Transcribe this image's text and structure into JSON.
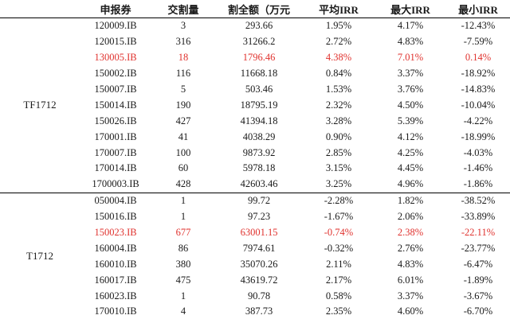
{
  "headers": [
    "",
    "申报券",
    "交割量",
    "割全额（万元",
    "平均IRR",
    "最大IRR",
    "最小IRR"
  ],
  "colors": {
    "highlight": "#e0322e",
    "text": "#1a1a1a"
  },
  "groups": [
    {
      "name": "TF1712",
      "rows": [
        {
          "code": "120009.IB",
          "qty": "3",
          "amount": "293.66",
          "avg": "1.95%",
          "max": "4.17%",
          "min": "-12.43%",
          "highlight": false
        },
        {
          "code": "120015.IB",
          "qty": "316",
          "amount": "31266.2",
          "avg": "2.72%",
          "max": "4.83%",
          "min": "-7.59%",
          "highlight": false
        },
        {
          "code": "130005.IB",
          "qty": "18",
          "amount": "1796.46",
          "avg": "4.38%",
          "max": "7.01%",
          "min": "0.14%",
          "highlight": true
        },
        {
          "code": "150002.IB",
          "qty": "116",
          "amount": "11668.18",
          "avg": "0.84%",
          "max": "3.37%",
          "min": "-18.92%",
          "highlight": false
        },
        {
          "code": "150007.IB",
          "qty": "5",
          "amount": "503.46",
          "avg": "1.53%",
          "max": "3.76%",
          "min": "-14.83%",
          "highlight": false
        },
        {
          "code": "150014.IB",
          "qty": "190",
          "amount": "18795.19",
          "avg": "2.32%",
          "max": "4.50%",
          "min": "-10.04%",
          "highlight": false
        },
        {
          "code": "150026.IB",
          "qty": "427",
          "amount": "41394.18",
          "avg": "3.28%",
          "max": "5.39%",
          "min": "-4.22%",
          "highlight": false
        },
        {
          "code": "170001.IB",
          "qty": "41",
          "amount": "4038.29",
          "avg": "0.90%",
          "max": "4.12%",
          "min": "-18.99%",
          "highlight": false
        },
        {
          "code": "170007.IB",
          "qty": "100",
          "amount": "9873.92",
          "avg": "2.85%",
          "max": "4.25%",
          "min": "-4.03%",
          "highlight": false
        },
        {
          "code": "170014.IB",
          "qty": "60",
          "amount": "5978.18",
          "avg": "3.15%",
          "max": "4.45%",
          "min": "-1.46%",
          "highlight": false
        },
        {
          "code": "1700003.IB",
          "qty": "428",
          "amount": "42603.46",
          "avg": "3.25%",
          "max": "4.96%",
          "min": "-1.86%",
          "highlight": false
        }
      ]
    },
    {
      "name": "T1712",
      "rows": [
        {
          "code": "050004.IB",
          "qty": "1",
          "amount": "99.72",
          "avg": "-2.28%",
          "max": "1.82%",
          "min": "-38.52%",
          "highlight": false
        },
        {
          "code": "150016.IB",
          "qty": "1",
          "amount": "97.23",
          "avg": "-1.67%",
          "max": "2.06%",
          "min": "-33.89%",
          "highlight": false
        },
        {
          "code": "150023.IB",
          "qty": "677",
          "amount": "63001.15",
          "avg": "-0.74%",
          "max": "2.38%",
          "min": "-22.11%",
          "highlight": true
        },
        {
          "code": "160004.IB",
          "qty": "86",
          "amount": "7974.61",
          "avg": "-0.32%",
          "max": "2.76%",
          "min": "-23.77%",
          "highlight": false
        },
        {
          "code": "160010.IB",
          "qty": "380",
          "amount": "35070.26",
          "avg": "2.11%",
          "max": "4.83%",
          "min": "-6.47%",
          "highlight": false
        },
        {
          "code": "160017.IB",
          "qty": "475",
          "amount": "43619.72",
          "avg": "2.17%",
          "max": "6.01%",
          "min": "-1.89%",
          "highlight": false
        },
        {
          "code": "160023.IB",
          "qty": "1",
          "amount": "90.78",
          "avg": "0.58%",
          "max": "3.37%",
          "min": "-3.67%",
          "highlight": false
        },
        {
          "code": "170010.IB",
          "qty": "4",
          "amount": "387.73",
          "avg": "2.35%",
          "max": "4.60%",
          "min": "-6.70%",
          "highlight": false
        }
      ]
    }
  ]
}
